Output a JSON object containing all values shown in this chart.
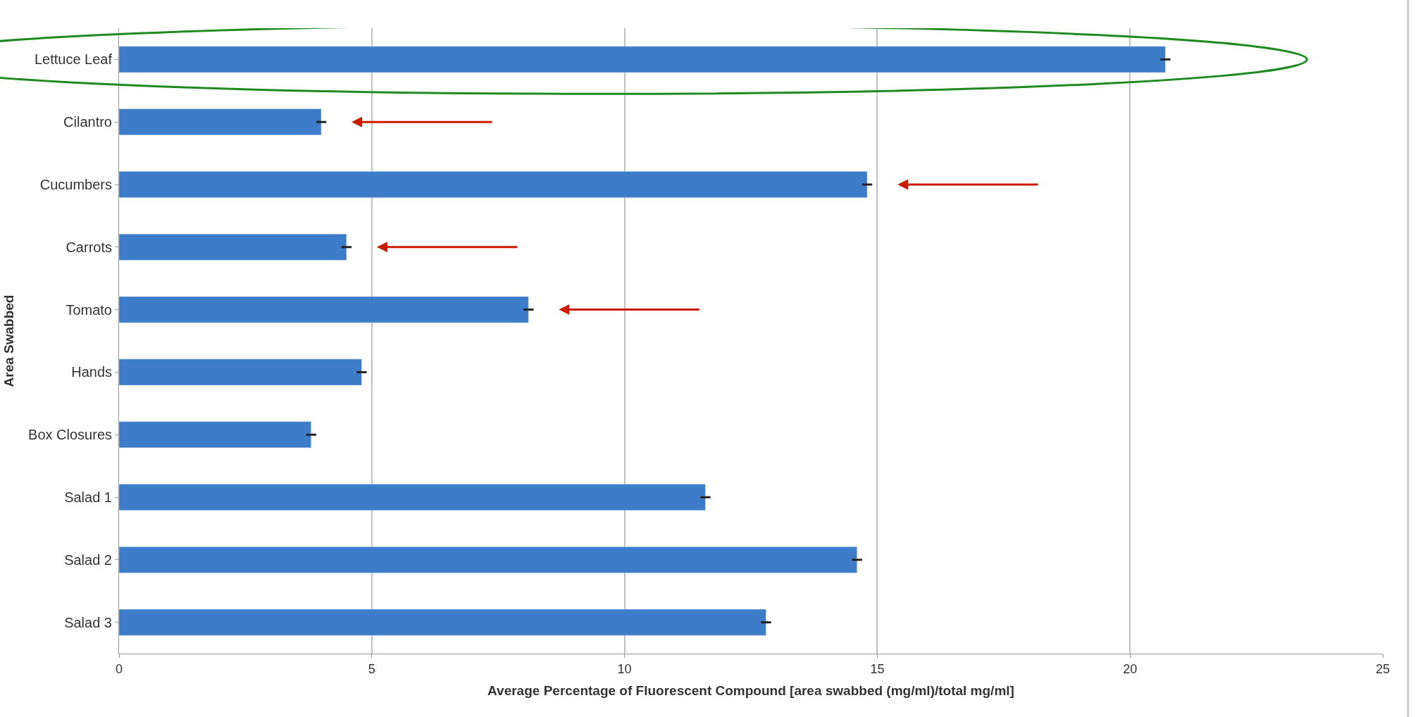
{
  "chart_data": {
    "type": "bar",
    "orientation": "horizontal",
    "xlabel": "Average Percentage of Fluorescent Compound [area swabbed (mg/ml)/total mg/ml]",
    "ylabel": "Area Swabbed",
    "categories": [
      "Lettuce Leaf",
      "Cilantro",
      "Cucumbers",
      "Carrots",
      "Tomato",
      "Hands",
      "Box Closures",
      "Salad 1",
      "Salad 2",
      "Salad 3"
    ],
    "values": [
      20.7,
      4.0,
      14.8,
      4.5,
      8.1,
      4.8,
      3.8,
      11.6,
      14.6,
      12.8
    ],
    "errors": [
      0.1,
      0.1,
      0.1,
      0.1,
      0.1,
      0.1,
      0.1,
      0.1,
      0.1,
      0.1
    ],
    "color": "#3d7cc9",
    "xlim": [
      0,
      25
    ],
    "xticks": [
      0,
      5,
      10,
      15,
      20,
      25
    ],
    "grid": "x"
  }
}
